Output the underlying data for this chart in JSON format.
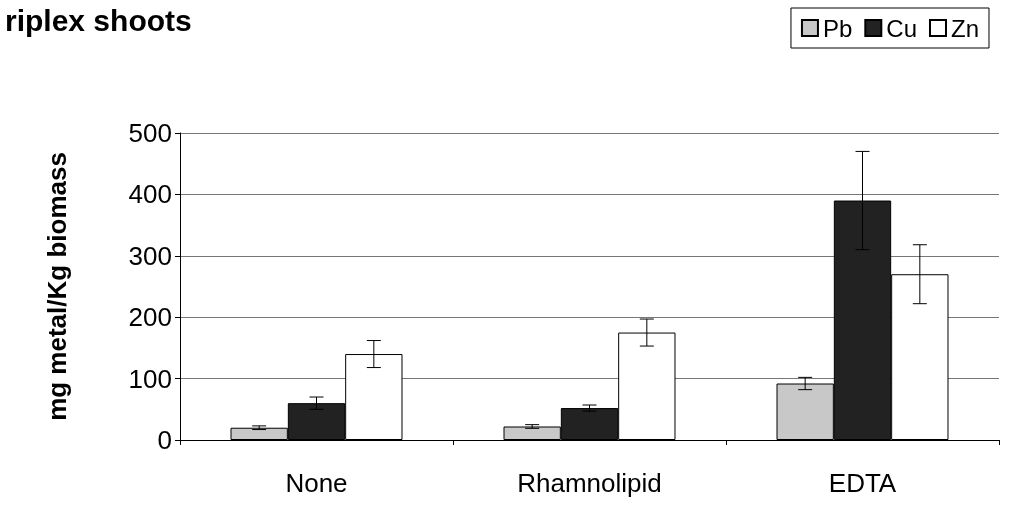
{
  "chart_data": {
    "type": "bar",
    "title": "riplex shoots",
    "ylabel": "mg metal/Kg biomass",
    "categories": [
      "None",
      "Rhamnolipid",
      "EDTA"
    ],
    "series": [
      {
        "name": "Pb",
        "color": "#c8c8c8",
        "values": [
          20,
          22,
          92
        ],
        "errors": [
          3,
          3,
          10
        ]
      },
      {
        "name": "Cu",
        "color": "#222222",
        "values": [
          60,
          52,
          390
        ],
        "errors": [
          10,
          5,
          80
        ]
      },
      {
        "name": "Zn",
        "color": "#ffffff",
        "values": [
          140,
          175,
          270
        ],
        "errors": [
          22,
          22,
          48
        ]
      }
    ],
    "ylim": [
      0,
      500
    ],
    "yticks": [
      0,
      100,
      200,
      300,
      400,
      500
    ],
    "grid": "y",
    "legend": "top right"
  }
}
